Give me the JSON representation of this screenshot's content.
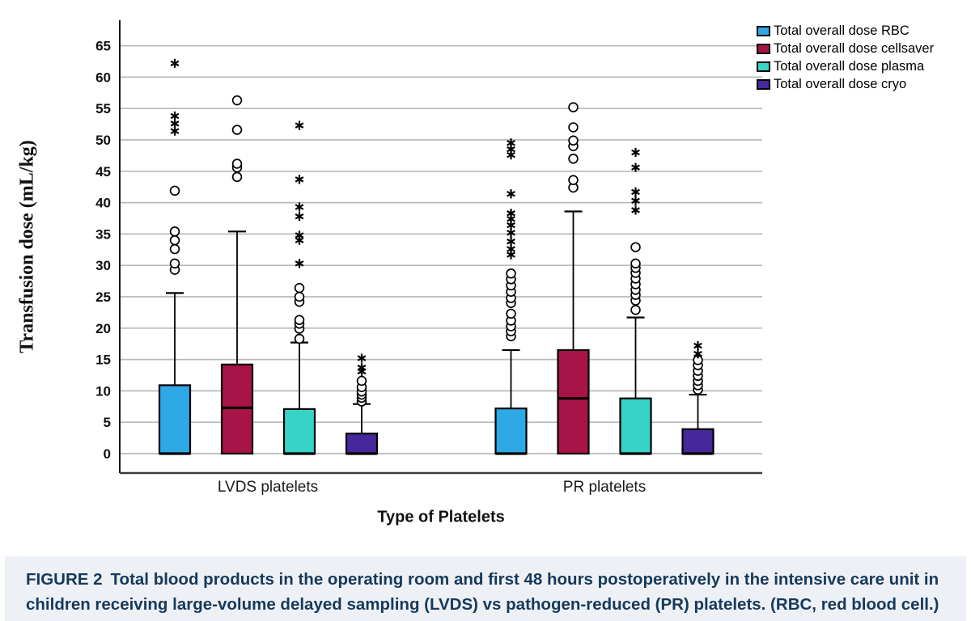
{
  "chart_data": {
    "type": "boxplot",
    "title": "",
    "ylabel": "Transfusion dose (mL/kg)",
    "xlabel": "Type of Platelets",
    "ylim": [
      0,
      65
    ],
    "yticks": [
      0,
      5,
      10,
      15,
      20,
      25,
      30,
      35,
      40,
      45,
      50,
      55,
      60,
      65
    ],
    "grid": true,
    "legend_position": "top-right",
    "categories": [
      "LVDS platelets",
      "PR platelets"
    ],
    "series": [
      {
        "name": "Total overall dose RBC",
        "color": "#2FA8E6",
        "boxes": [
          {
            "category": "LVDS platelets",
            "q1": 0,
            "median": 0,
            "q3": 10.9,
            "whisker_low": 0,
            "whisker_high": 25.6,
            "outliers_circle": [
              29.3,
              30.3,
              32.6,
              34.0,
              35.4,
              41.9
            ],
            "outliers_star": [
              51.4,
              52.6,
              53.8,
              62.2
            ]
          },
          {
            "category": "PR platelets",
            "q1": 0,
            "median": 0,
            "q3": 7.2,
            "whisker_low": 0,
            "whisker_high": 16.5,
            "outliers_circle": [
              18.7,
              19.5,
              20.3,
              21.2,
              22.3,
              24.0,
              24.8,
              25.8,
              26.8,
              27.8,
              28.7
            ],
            "outliers_star": [
              31.7,
              32.6,
              33.8,
              35.2,
              36.4,
              37.4,
              38.3,
              41.4,
              47.6,
              48.5,
              49.5
            ]
          }
        ]
      },
      {
        "name": "Total overall dose cellsaver",
        "color": "#A81348",
        "boxes": [
          {
            "category": "LVDS platelets",
            "q1": 0,
            "median": 7.3,
            "q3": 14.2,
            "whisker_low": 0,
            "whisker_high": 35.4,
            "outliers_circle": [
              44.1,
              45.6,
              46.2,
              51.6,
              56.3
            ],
            "outliers_star": []
          },
          {
            "category": "PR platelets",
            "q1": 0,
            "median": 8.8,
            "q3": 16.5,
            "whisker_low": 0,
            "whisker_high": 38.6,
            "outliers_circle": [
              42.4,
              43.6,
              47.0,
              49.0,
              49.9,
              52.0,
              55.2
            ],
            "outliers_star": []
          }
        ]
      },
      {
        "name": "Total overall dose plasma",
        "color": "#36D3C6",
        "boxes": [
          {
            "category": "LVDS platelets",
            "q1": 0,
            "median": 0,
            "q3": 7.1,
            "whisker_low": 0,
            "whisker_high": 17.7,
            "outliers_circle": [
              18.3,
              19.9,
              20.7,
              21.3,
              24.2,
              25.0,
              26.4
            ],
            "outliers_star": [
              30.3,
              34.0,
              34.8,
              37.8,
              39.3,
              43.7,
              52.3
            ]
          },
          {
            "category": "PR platelets",
            "q1": 0,
            "median": 0,
            "q3": 8.8,
            "whisker_low": 0,
            "whisker_high": 21.7,
            "outliers_circle": [
              22.9,
              24.4,
              25.3,
              26.1,
              27.0,
              27.9,
              28.8,
              29.6,
              30.3,
              32.9
            ],
            "outliers_star": [
              38.8,
              40.3,
              41.7,
              45.6,
              48.0
            ]
          }
        ]
      },
      {
        "name": "Total overall dose cryo",
        "color": "#46289C",
        "boxes": [
          {
            "category": "LVDS platelets",
            "q1": 0,
            "median": 0,
            "q3": 3.2,
            "whisker_low": 0,
            "whisker_high": 7.9,
            "outliers_circle": [
              8.3,
              8.9,
              9.4,
              9.9,
              10.6,
              11.6
            ],
            "outliers_star": [
              13.1,
              13.7,
              15.2
            ]
          },
          {
            "category": "PR platelets",
            "q1": 0,
            "median": 0,
            "q3": 3.9,
            "whisker_low": 0,
            "whisker_high": 9.4,
            "outliers_circle": [
              10.2,
              10.9,
              11.6,
              12.4,
              13.2,
              14.1,
              14.9
            ],
            "outliers_star": [
              15.9,
              17.2
            ]
          }
        ]
      }
    ]
  },
  "caption": {
    "label": "FIGURE 2",
    "text": "Total blood products in the operating room and first 48 hours postoperatively in the intensive care unit in children receiving large-volume delayed sampling (LVDS) vs pathogen-reduced (PR) platelets. (RBC, red blood cell.)"
  }
}
